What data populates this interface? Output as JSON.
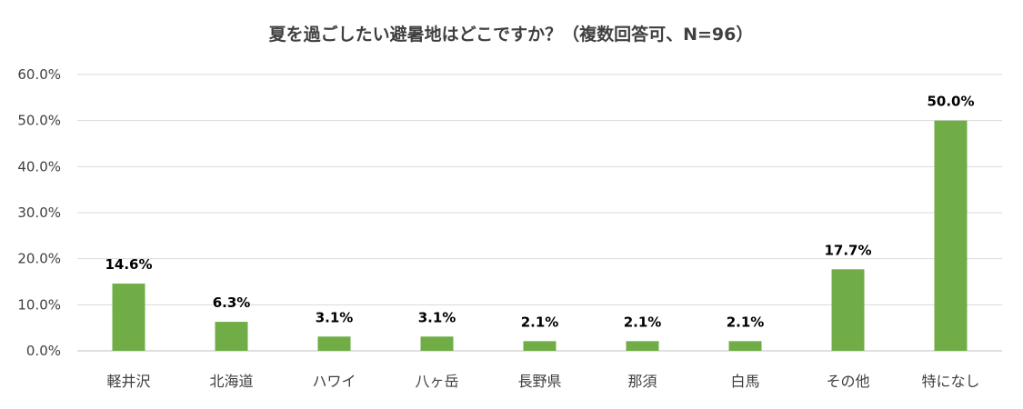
{
  "chart_data": {
    "type": "bar",
    "title": "夏を過ごしたい避暑地はどこですか？（複数回答可、N=96）",
    "categories": [
      "軽井沢",
      "北海道",
      "ハワイ",
      "八ヶ岳",
      "長野県",
      "那須",
      "白馬",
      "その他",
      "特になし"
    ],
    "values": [
      14.6,
      6.3,
      3.1,
      3.1,
      2.1,
      2.1,
      2.1,
      17.7,
      50.0
    ],
    "data_labels": [
      "14.6%",
      "6.3%",
      "3.1%",
      "3.1%",
      "2.1%",
      "2.1%",
      "2.1%",
      "17.7%",
      "50.0%"
    ],
    "yticks": [
      0,
      10,
      20,
      30,
      40,
      50,
      60
    ],
    "ytick_labels": [
      "0.0%",
      "10.0%",
      "20.0%",
      "30.0%",
      "40.0%",
      "50.0%",
      "60.0%"
    ],
    "ylim": [
      0,
      60
    ],
    "xlabel": "",
    "ylabel": "",
    "grid": true,
    "legend": "none",
    "bar_color": "#70AD47"
  }
}
